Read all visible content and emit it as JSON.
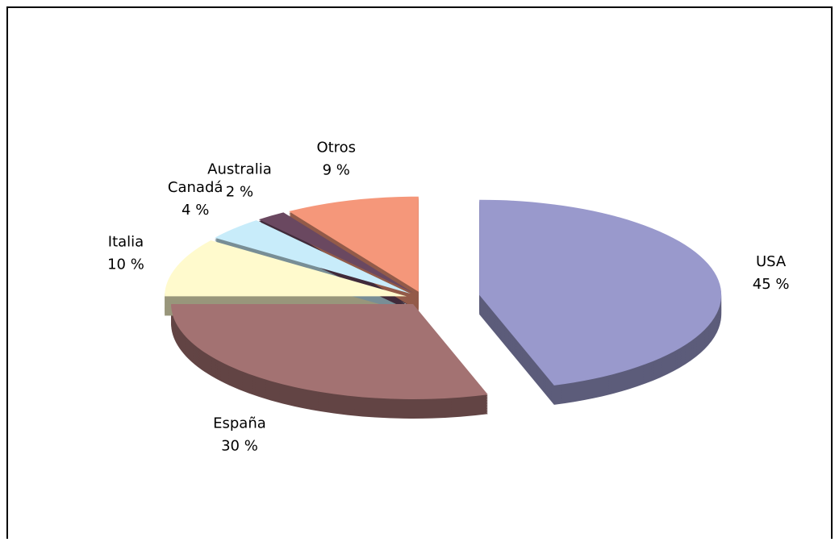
{
  "chart_data": {
    "type": "pie",
    "categories": [
      "USA",
      "España",
      "Italia",
      "Canadá",
      "Australia",
      "Otros"
    ],
    "values": [
      45,
      30,
      10,
      4,
      2,
      9
    ],
    "value_labels": [
      "45 %",
      "30 %",
      "10 %",
      "4 %",
      "2 %",
      "9 %"
    ],
    "colors": [
      "#9999cc",
      "#a37272",
      "#fffacd",
      "#c8ecfa",
      "#6a4860",
      "#f5977a"
    ]
  }
}
